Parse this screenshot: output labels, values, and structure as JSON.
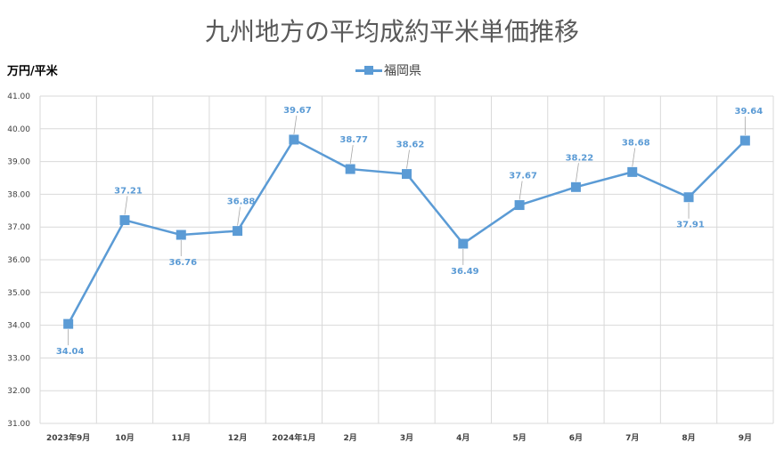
{
  "chart_data": {
    "type": "line",
    "title": "九州地方の平均成約平米単価推移",
    "ylabel": "万円/平米",
    "xlabel": "",
    "categories": [
      "2023年9月",
      "10月",
      "11月",
      "12月",
      "2024年1月",
      "2月",
      "3月",
      "4月",
      "5月",
      "6月",
      "7月",
      "8月",
      "9月"
    ],
    "series": [
      {
        "name": "福岡県",
        "values": [
          34.04,
          37.21,
          36.76,
          36.88,
          39.67,
          38.77,
          38.62,
          36.49,
          37.67,
          38.22,
          38.68,
          37.91,
          39.64
        ],
        "color": "#5b9bd5",
        "marker": "square",
        "data_labels": [
          "34.04",
          "37.21",
          "36.76",
          "36.88",
          "39.67",
          "38.77",
          "38.62",
          "36.49",
          "37.67",
          "38.22",
          "38.68",
          "37.91",
          "39.64"
        ]
      }
    ],
    "ylim": [
      31,
      41
    ],
    "yticks": [
      "31.00",
      "32.00",
      "33.00",
      "34.00",
      "35.00",
      "36.00",
      "37.00",
      "38.00",
      "39.00",
      "40.00",
      "41.00"
    ],
    "grid": true,
    "legend": "top-center"
  }
}
